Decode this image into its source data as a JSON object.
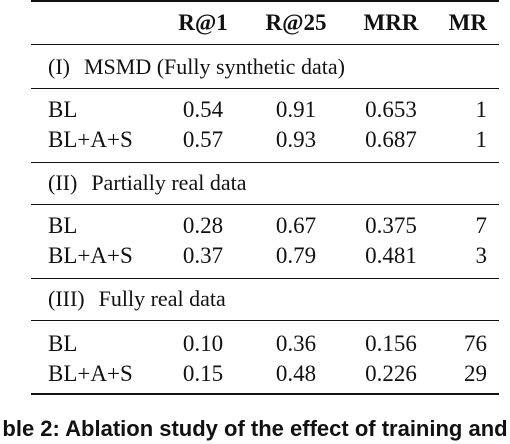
{
  "table": {
    "columns": [
      "R@1",
      "R@25",
      "MRR",
      "MR"
    ],
    "sections": [
      {
        "roman": "(I)",
        "title": "MSMD (Fully synthetic data)",
        "rows": [
          {
            "method": "BL",
            "r1": "0.54",
            "r25": "0.91",
            "mrr": "0.653",
            "mr": "1"
          },
          {
            "method": "BL+A+S",
            "r1": "0.57",
            "r25": "0.93",
            "mrr": "0.687",
            "mr": "1"
          }
        ]
      },
      {
        "roman": "(II)",
        "title": "Partially real data",
        "rows": [
          {
            "method": "BL",
            "r1": "0.28",
            "r25": "0.67",
            "mrr": "0.375",
            "mr": "7"
          },
          {
            "method": "BL+A+S",
            "r1": "0.37",
            "r25": "0.79",
            "mrr": "0.481",
            "mr": "3"
          }
        ]
      },
      {
        "roman": "(III)",
        "title": "Fully real data",
        "rows": [
          {
            "method": "BL",
            "r1": "0.10",
            "r25": "0.36",
            "mrr": "0.156",
            "mr": "76"
          },
          {
            "method": "BL+A+S",
            "r1": "0.15",
            "r25": "0.48",
            "mrr": "0.226",
            "mr": "29"
          }
        ]
      }
    ]
  },
  "caption": "ble 2: Ablation study of the effect of training and"
}
